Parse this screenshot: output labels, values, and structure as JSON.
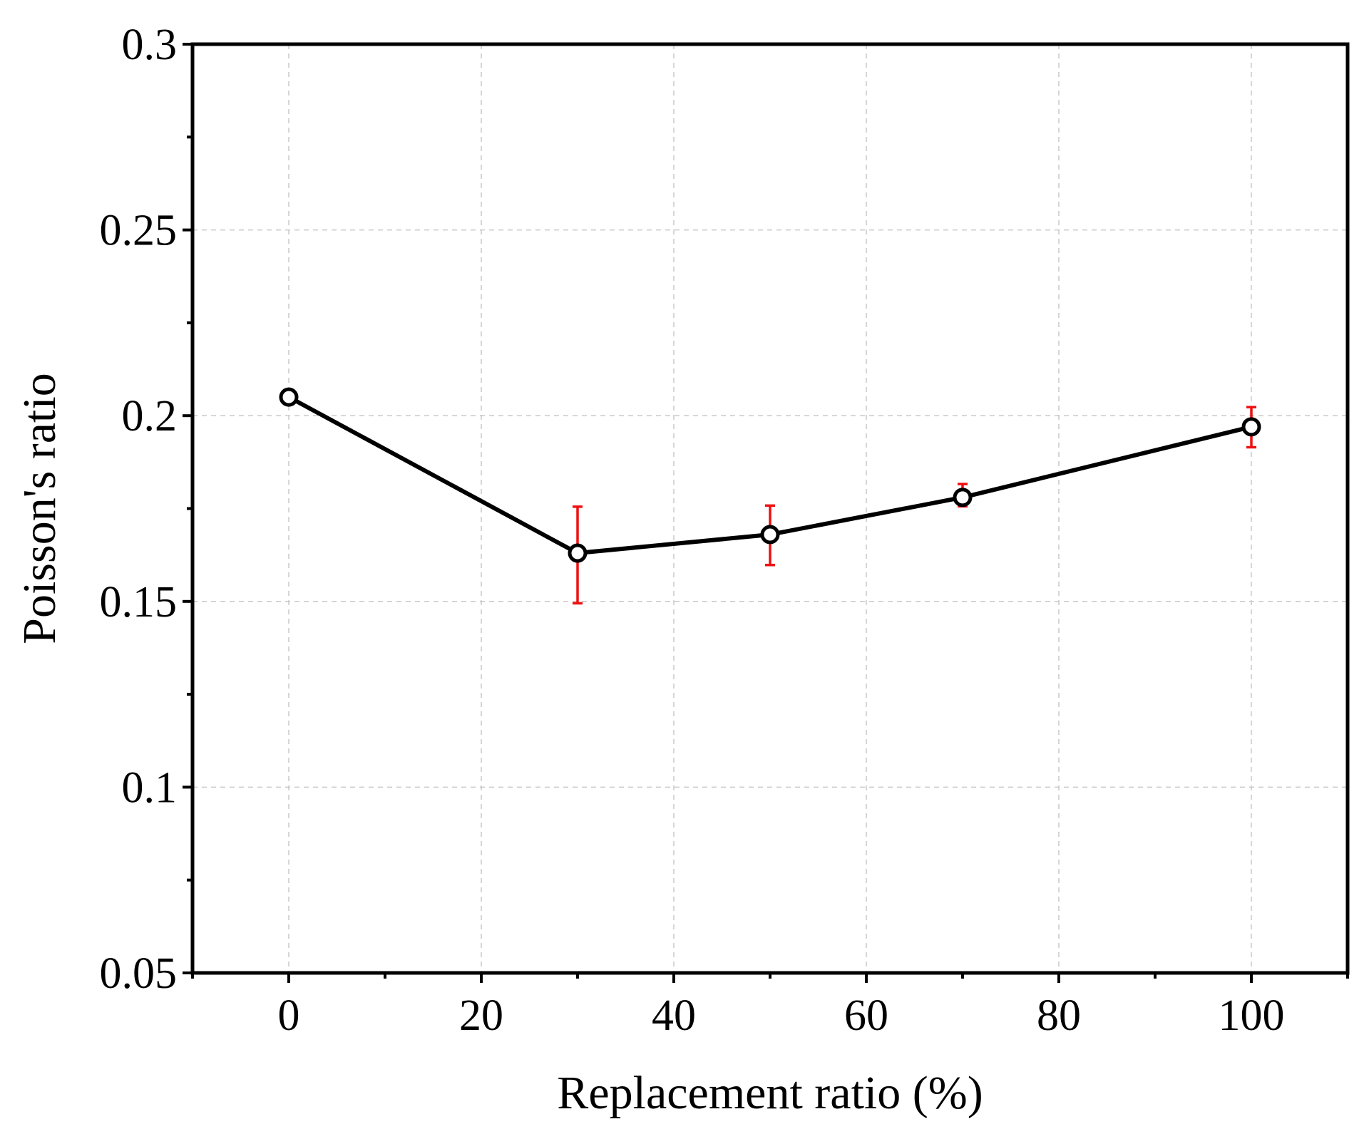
{
  "chart_data": {
    "type": "line",
    "title": "",
    "xlabel": "Replacement ratio (%)",
    "ylabel": "Poisson's ratio",
    "xlim": [
      -10,
      110
    ],
    "ylim": [
      0.05,
      0.3
    ],
    "xticks": [
      0,
      20,
      40,
      60,
      80,
      100
    ],
    "xtick_labels": [
      "0",
      "20",
      "40",
      "60",
      "80",
      "100"
    ],
    "xminor": [
      -10,
      10,
      30,
      50,
      70,
      90,
      110
    ],
    "yticks": [
      0.05,
      0.1,
      0.15,
      0.2,
      0.25,
      0.3
    ],
    "ytick_labels": [
      "0.05",
      "0.1",
      "0.15",
      "0.2",
      "0.25",
      "0.3"
    ],
    "yminor": [
      0.075,
      0.125,
      0.175,
      0.225,
      0.275
    ],
    "grid": true,
    "series": [
      {
        "name": "Poisson's ratio",
        "x": [
          0,
          30,
          50,
          70,
          100
        ],
        "y": [
          0.205,
          0.163,
          0.168,
          0.178,
          0.197
        ],
        "error_low": [
          0.2035,
          0.1495,
          0.1598,
          0.1756,
          0.1915
        ],
        "error_high": [
          0.2065,
          0.1755,
          0.1758,
          0.1816,
          0.2023
        ],
        "line_color": "#000000",
        "marker_face": "#ffffff",
        "error_color": "#ee1111"
      }
    ]
  }
}
